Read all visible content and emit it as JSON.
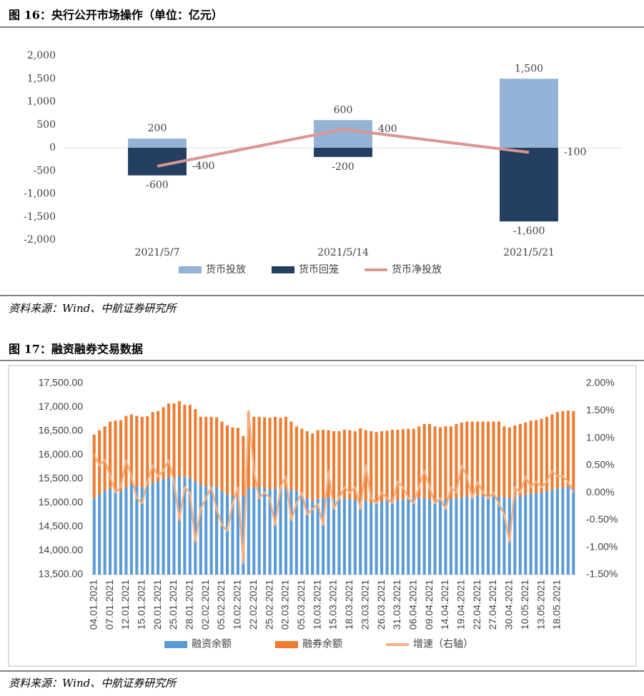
{
  "chart_data": [
    {
      "type": "bar",
      "stacked": true,
      "title": "图 16：央行公开市场操作（单位：亿元）",
      "source": "资料来源：Wind、中航证券研究所",
      "categories": [
        "2021/5/7",
        "2021/5/14",
        "2021/5/21"
      ],
      "series": [
        {
          "name": "货币投放",
          "type": "bar",
          "color": "#95b3d7",
          "values": [
            200,
            600,
            1500
          ],
          "value_labels": [
            "200",
            "600",
            "1,500"
          ]
        },
        {
          "name": "货币回笼",
          "type": "bar",
          "color": "#243f60",
          "values": [
            -600,
            -200,
            -1600
          ],
          "value_labels": [
            "-600",
            "-200",
            "-1,600"
          ]
        },
        {
          "name": "货币净投放",
          "type": "line",
          "color": "#d99694",
          "values": [
            -400,
            400,
            -100
          ]
        }
      ],
      "ylim": [
        -2000,
        2000
      ],
      "yticks": [
        {
          "value": -2000,
          "label": "-2,000"
        },
        {
          "value": -1500,
          "label": "-1,500"
        },
        {
          "value": -1000,
          "label": "-1,000"
        },
        -500,
        0,
        500,
        {
          "value": 1000,
          "label": "1,000"
        },
        {
          "value": 1500,
          "label": "1,500"
        },
        {
          "value": 2000,
          "label": "2,000"
        }
      ],
      "grid": false,
      "data_labels": true,
      "legend": "bottom"
    },
    {
      "type": "bar",
      "stacked": true,
      "title": "图 17：融资融券交易数据",
      "source": "资料来源：Wind、中航证券研究所",
      "categories": [
        "04.01.2021",
        null,
        null,
        "07.01.2021",
        null,
        null,
        "12.01.2021",
        null,
        null,
        "15.01.2021",
        null,
        null,
        "20.01.2021",
        null,
        null,
        "25.01.2021",
        null,
        null,
        "28.01.2021",
        null,
        null,
        "02.02.2021",
        null,
        null,
        "05.02.2021",
        null,
        null,
        "10.02.2021",
        null,
        null,
        "22.02.2021",
        null,
        null,
        "25.02.2021",
        null,
        null,
        "02.03.2021",
        null,
        null,
        "05.03.2021",
        null,
        null,
        "10.03.2021",
        null,
        null,
        "15.03.2021",
        null,
        null,
        "18.03.2021",
        null,
        null,
        "23.03.2021",
        null,
        null,
        "26.03.2021",
        null,
        null,
        "31.03.2021",
        null,
        null,
        "06.04.2021",
        null,
        null,
        "09.04.2021",
        null,
        null,
        "14.04.2021",
        null,
        null,
        "19.04.2021",
        null,
        null,
        "22.04.2021",
        null,
        null,
        "27.04.2021",
        null,
        null,
        "30.04.2021",
        null,
        null,
        "10.05.2021",
        null,
        null,
        "13.05.2021",
        null,
        null,
        "18.05.2021",
        null,
        null,
        null
      ],
      "series": [
        {
          "name": "融资余额",
          "type": "bar",
          "color": "#5b9bd5",
          "values": [
            15100,
            15180,
            15250,
            15300,
            15280,
            15250,
            15320,
            15380,
            15350,
            15330,
            15360,
            15420,
            15450,
            15500,
            15530,
            15520,
            15560,
            15540,
            15520,
            15450,
            15380,
            15350,
            15360,
            15330,
            15250,
            15180,
            15150,
            15120,
            15150,
            15300,
            15320,
            15330,
            15310,
            15280,
            15300,
            15320,
            15300,
            15280,
            15250,
            15180,
            15100,
            15050,
            15080,
            15100,
            15120,
            15080,
            15090,
            15100,
            15080,
            15060,
            15050,
            15040,
            15000,
            15020,
            15030,
            15040,
            15050,
            15060,
            15080,
            15090,
            15100,
            15110,
            15090,
            15080,
            15050,
            15060,
            15070,
            15080,
            15100,
            15110,
            15130,
            15140,
            15150,
            15140,
            15150,
            15140,
            15130,
            15120,
            15100,
            15120,
            15150,
            15170,
            15190,
            15200,
            15220,
            15240,
            15280,
            15300,
            15320,
            15340,
            15300
          ]
        },
        {
          "name": "融券余额",
          "type": "bar",
          "color": "#ed7d31",
          "values": [
            1330,
            1340,
            1350,
            1400,
            1440,
            1480,
            1500,
            1470,
            1470,
            1470,
            1450,
            1480,
            1470,
            1500,
            1550,
            1560,
            1570,
            1510,
            1530,
            1510,
            1420,
            1450,
            1440,
            1460,
            1450,
            1440,
            1430,
            1450,
            1250,
            1600,
            1480,
            1470,
            1480,
            1500,
            1500,
            1460,
            1500,
            1420,
            1350,
            1370,
            1400,
            1400,
            1440,
            1430,
            1400,
            1420,
            1410,
            1430,
            1440,
            1440,
            1510,
            1480,
            1500,
            1460,
            1470,
            1470,
            1480,
            1470,
            1460,
            1460,
            1450,
            1490,
            1560,
            1570,
            1550,
            1520,
            1530,
            1520,
            1550,
            1570,
            1570,
            1560,
            1550,
            1560,
            1550,
            1560,
            1570,
            1480,
            1480,
            1500,
            1500,
            1510,
            1530,
            1530,
            1540,
            1560,
            1570,
            1600,
            1600,
            1590,
            1620
          ]
        },
        {
          "name": "增速（右轴）",
          "type": "line",
          "axis": "y2",
          "color": "#f4b183",
          "values": [
            0.7,
            0.5,
            0.6,
            0.3,
            0.0,
            0.1,
            0.6,
            0.3,
            -0.1,
            -0.2,
            0.2,
            0.5,
            0.3,
            0.4,
            0.6,
            0.2,
            -0.5,
            0.1,
            0.0,
            -0.9,
            -0.3,
            -0.1,
            0.1,
            -0.3,
            -0.6,
            -0.7,
            -0.2,
            0.1,
            -1.3,
            1.5,
            0.4,
            -0.1,
            0.0,
            -0.1,
            -0.6,
            0.1,
            0.3,
            -0.5,
            -0.2,
            0.0,
            -0.4,
            -0.3,
            -0.2,
            -0.6,
            0.4,
            -0.3,
            -0.1,
            0.1,
            0.0,
            0.1,
            -0.3,
            0.5,
            -0.1,
            -0.2,
            0.0,
            -0.1,
            -0.2,
            0.2,
            0.1,
            -0.1,
            -0.2,
            0.1,
            0.4,
            0.1,
            -0.2,
            -0.1,
            -0.3,
            0.1,
            0.0,
            0.5,
            0.3,
            -0.1,
            0.2,
            0.0,
            -0.1,
            0.0,
            -0.2,
            -0.4,
            -0.9,
            0.1,
            0.0,
            0.3,
            0.1,
            0.2,
            0.1,
            0.2,
            0.4,
            0.3,
            0.3,
            0.2,
            0.0
          ]
        }
      ],
      "ylim": [
        13500,
        17500
      ],
      "yticks": [
        {
          "value": 13500,
          "label": "13,500.00"
        },
        {
          "value": 14000,
          "label": "14,000.00"
        },
        {
          "value": 14500,
          "label": "14,500.00"
        },
        {
          "value": 15000,
          "label": "15,000.00"
        },
        {
          "value": 15500,
          "label": "15,500.00"
        },
        {
          "value": 16000,
          "label": "16,000.00"
        },
        {
          "value": 16500,
          "label": "16,500.00"
        },
        {
          "value": 17000,
          "label": "17,000.00"
        },
        {
          "value": 17500,
          "label": "17,500.00"
        }
      ],
      "y2lim": [
        -1.5,
        2.0
      ],
      "y2ticks": [
        {
          "value": -1.5,
          "label": "-1.50%"
        },
        {
          "value": -1.0,
          "label": "-1.00%"
        },
        {
          "value": -0.5,
          "label": "-0.50%"
        },
        {
          "value": 0,
          "label": "0.00%"
        },
        {
          "value": 0.5,
          "label": "0.50%"
        },
        {
          "value": 1.0,
          "label": "1.00%"
        },
        {
          "value": 1.5,
          "label": "1.50%"
        },
        {
          "value": 2.0,
          "label": "2.00%"
        }
      ],
      "grid": false,
      "data_labels": false,
      "legend": "bottom"
    }
  ]
}
